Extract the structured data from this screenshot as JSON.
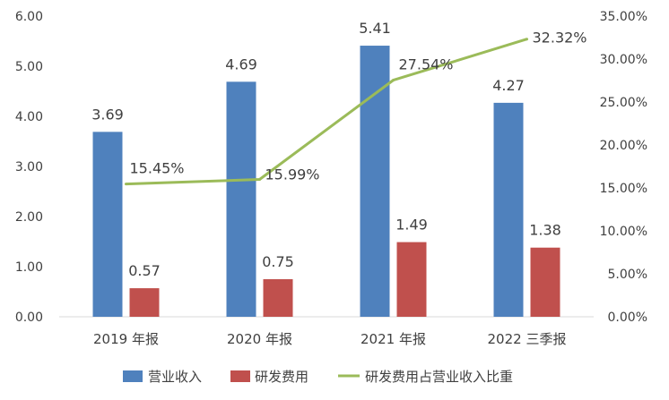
{
  "chart_data": {
    "type": "bar",
    "categories": [
      "2019 年报",
      "2020 年报",
      "2021 年报",
      "2022 三季报"
    ],
    "series": [
      {
        "name": "营业收入",
        "type": "bar",
        "axis": "left",
        "color": "#4F81BD",
        "values": [
          3.69,
          4.69,
          5.41,
          4.27
        ],
        "labels": [
          "3.69",
          "4.69",
          "5.41",
          "4.27"
        ]
      },
      {
        "name": "研发费用",
        "type": "bar",
        "axis": "left",
        "color": "#C0504D",
        "values": [
          0.57,
          0.75,
          1.49,
          1.38
        ],
        "labels": [
          "0.57",
          "0.75",
          "1.49",
          "1.38"
        ]
      },
      {
        "name": "研发费用占营业收入比重",
        "type": "line",
        "axis": "right",
        "color": "#9BBB59",
        "values": [
          15.45,
          15.99,
          27.54,
          32.32
        ],
        "labels": [
          "15.45%",
          "15.99%",
          "27.54%",
          "32.32%"
        ]
      }
    ],
    "left_axis": {
      "ylim": [
        0,
        6
      ],
      "ticks": [
        "0.00",
        "1.00",
        "2.00",
        "3.00",
        "4.00",
        "5.00",
        "6.00"
      ]
    },
    "right_axis": {
      "ylim": [
        0,
        35
      ],
      "ticks": [
        "0.00%",
        "5.00%",
        "10.00%",
        "15.00%",
        "20.00%",
        "25.00%",
        "30.00%",
        "35.00%"
      ]
    },
    "legend": {
      "position": "bottom",
      "items": [
        "营业收入",
        "研发费用",
        "研发费用占营业收入比重"
      ]
    },
    "grid": false
  }
}
